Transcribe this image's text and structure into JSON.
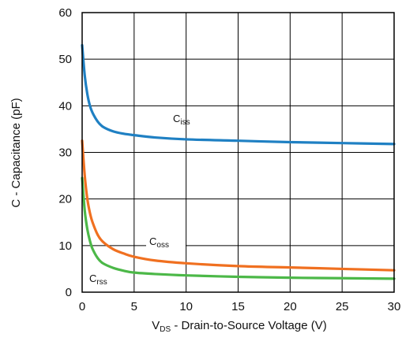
{
  "chart_data": {
    "type": "line",
    "title": "",
    "xlabel": {
      "prefix": "V",
      "sub": "DS",
      "rest": " - Drain-to-Source Voltage (V)"
    },
    "ylabel": "C - Capacitance (pF)",
    "xlim": [
      0,
      30
    ],
    "ylim": [
      0,
      60
    ],
    "x_ticks": [
      0,
      5,
      10,
      15,
      20,
      25,
      30
    ],
    "y_ticks": [
      0,
      10,
      20,
      30,
      40,
      50,
      60
    ],
    "grid": true,
    "series": [
      {
        "name": "Ciss",
        "label": {
          "main": "C",
          "sub": "iss"
        },
        "color": "#1f80c3",
        "x": [
          0,
          0.25,
          0.5,
          0.75,
          1,
          1.5,
          2,
          3,
          4,
          5,
          7,
          10,
          15,
          20,
          25,
          30
        ],
        "y": [
          53,
          46.5,
          42.5,
          40,
          38.5,
          36.6,
          35.5,
          34.5,
          34.0,
          33.7,
          33.2,
          32.8,
          32.5,
          32.2,
          32.0,
          31.8
        ]
      },
      {
        "name": "Coss",
        "label": {
          "main": "C",
          "sub": "oss"
        },
        "color": "#f07020",
        "x": [
          0,
          0.25,
          0.5,
          0.75,
          1,
          1.5,
          2,
          3,
          4,
          5,
          7,
          10,
          15,
          20,
          25,
          30
        ],
        "y": [
          32.5,
          25,
          20,
          17,
          15,
          12.3,
          10.8,
          9.2,
          8.3,
          7.6,
          6.8,
          6.2,
          5.6,
          5.3,
          5.0,
          4.7
        ]
      },
      {
        "name": "Crss",
        "label": {
          "main": "C",
          "sub": "rss"
        },
        "color": "#4cb848",
        "x": [
          0,
          0.25,
          0.5,
          0.75,
          1,
          1.5,
          2,
          3,
          4,
          5,
          7,
          10,
          15,
          20,
          25,
          30
        ],
        "y": [
          24.5,
          17.5,
          13.5,
          11,
          9.3,
          7.3,
          6.2,
          5.2,
          4.6,
          4.2,
          3.9,
          3.6,
          3.3,
          3.1,
          3.0,
          2.9
        ]
      }
    ]
  }
}
